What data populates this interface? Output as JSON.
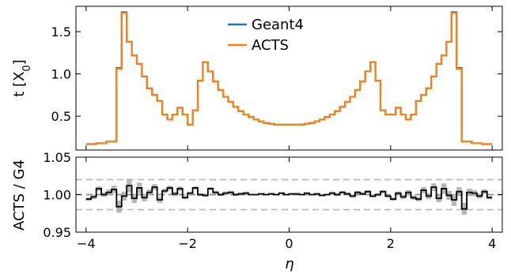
{
  "chart_data": [
    {
      "type": "line",
      "step": true,
      "ylabel_main": "t [X",
      "ylabel_sub": "0",
      "ylabel_close": "]",
      "xlim": [
        -4.2,
        4.2
      ],
      "ylim": [
        0.1,
        1.8
      ],
      "yticks": [
        "0.5",
        "1.0",
        "1.5"
      ],
      "ytick_values": [
        0.5,
        1.0,
        1.5
      ],
      "grid": false,
      "legend_position": "top-center",
      "x_edges": [
        -4.0,
        -3.8,
        -3.6,
        -3.4,
        -3.3,
        -3.2,
        -3.1,
        -3.0,
        -2.9,
        -2.8,
        -2.7,
        -2.6,
        -2.5,
        -2.4,
        -2.3,
        -2.2,
        -2.1,
        -2.0,
        -1.9,
        -1.8,
        -1.7,
        -1.6,
        -1.5,
        -1.4,
        -1.3,
        -1.2,
        -1.1,
        -1.0,
        -0.9,
        -0.8,
        -0.7,
        -0.6,
        -0.5,
        -0.4,
        -0.3,
        -0.2,
        -0.1,
        0.0,
        0.1,
        0.2,
        0.3,
        0.4,
        0.5,
        0.6,
        0.7,
        0.8,
        0.9,
        1.0,
        1.1,
        1.2,
        1.3,
        1.4,
        1.5,
        1.6,
        1.7,
        1.8,
        1.9,
        2.0,
        2.1,
        2.2,
        2.3,
        2.4,
        2.5,
        2.6,
        2.7,
        2.8,
        2.9,
        3.0,
        3.1,
        3.2,
        3.3,
        3.4,
        3.6,
        3.8,
        4.0
      ],
      "series": [
        {
          "name": "Geant4",
          "color": "#1f77b4",
          "values": [
            0.17,
            0.18,
            0.2,
            1.07,
            1.73,
            1.38,
            1.22,
            1.12,
            0.97,
            0.83,
            0.75,
            0.68,
            0.52,
            0.46,
            0.52,
            0.6,
            0.52,
            0.4,
            0.57,
            0.92,
            1.14,
            1.03,
            0.91,
            0.81,
            0.73,
            0.67,
            0.61,
            0.56,
            0.52,
            0.49,
            0.46,
            0.44,
            0.42,
            0.41,
            0.4,
            0.4,
            0.4,
            0.4,
            0.4,
            0.4,
            0.41,
            0.42,
            0.44,
            0.46,
            0.49,
            0.52,
            0.56,
            0.61,
            0.67,
            0.73,
            0.81,
            0.91,
            1.03,
            1.14,
            0.92,
            0.57,
            0.52,
            0.52,
            0.6,
            0.52,
            0.46,
            0.52,
            0.68,
            0.75,
            0.83,
            0.97,
            1.12,
            1.22,
            1.38,
            1.73,
            1.07,
            0.2,
            0.18,
            0.17
          ]
        },
        {
          "name": "ACTS",
          "color": "#ff7f0e",
          "values": [
            0.17,
            0.18,
            0.2,
            1.06,
            1.72,
            1.38,
            1.22,
            1.12,
            0.97,
            0.83,
            0.75,
            0.68,
            0.52,
            0.46,
            0.52,
            0.6,
            0.52,
            0.4,
            0.57,
            0.92,
            1.14,
            1.03,
            0.91,
            0.81,
            0.73,
            0.67,
            0.61,
            0.56,
            0.52,
            0.49,
            0.46,
            0.44,
            0.42,
            0.41,
            0.4,
            0.4,
            0.4,
            0.4,
            0.4,
            0.4,
            0.41,
            0.42,
            0.44,
            0.46,
            0.49,
            0.52,
            0.56,
            0.61,
            0.67,
            0.73,
            0.81,
            0.91,
            1.03,
            1.14,
            0.92,
            0.57,
            0.52,
            0.52,
            0.6,
            0.52,
            0.46,
            0.52,
            0.68,
            0.75,
            0.83,
            0.97,
            1.12,
            1.22,
            1.38,
            1.72,
            1.06,
            0.2,
            0.18,
            0.17
          ]
        }
      ]
    },
    {
      "type": "line",
      "step": true,
      "ylabel": "ACTS / G4",
      "xlabel": "η",
      "xlim": [
        -4.2,
        4.2
      ],
      "ylim": [
        0.95,
        1.05
      ],
      "yticks": [
        "0.95",
        "1.00",
        "1.05"
      ],
      "ytick_values": [
        0.95,
        1.0,
        1.05
      ],
      "xticks": [
        "−4",
        "−2",
        "0",
        "2",
        "4"
      ],
      "xtick_values": [
        -4,
        -2,
        0,
        2,
        4
      ],
      "reference_lines": [
        0.98,
        1.0,
        1.02
      ],
      "line_color": "#000000",
      "band_color": "#aaaaaa",
      "x_edges": [
        -4.0,
        -3.9,
        -3.8,
        -3.7,
        -3.6,
        -3.5,
        -3.4,
        -3.3,
        -3.2,
        -3.1,
        -3.0,
        -2.9,
        -2.8,
        -2.7,
        -2.6,
        -2.5,
        -2.4,
        -2.3,
        -2.2,
        -2.1,
        -2.0,
        -1.9,
        -1.8,
        -1.7,
        -1.6,
        -1.5,
        -1.4,
        -1.3,
        -1.2,
        -1.1,
        -1.0,
        -0.9,
        -0.8,
        -0.7,
        -0.6,
        -0.5,
        -0.4,
        -0.3,
        -0.2,
        -0.1,
        0.0,
        0.1,
        0.2,
        0.3,
        0.4,
        0.5,
        0.6,
        0.7,
        0.8,
        0.9,
        1.0,
        1.1,
        1.2,
        1.3,
        1.4,
        1.5,
        1.6,
        1.7,
        1.8,
        1.9,
        2.0,
        2.1,
        2.2,
        2.3,
        2.4,
        2.5,
        2.6,
        2.7,
        2.8,
        2.9,
        3.0,
        3.1,
        3.2,
        3.3,
        3.4,
        3.5,
        3.6,
        3.7,
        3.8,
        3.9,
        4.0
      ],
      "ratio": [
        0.994,
        0.997,
        1.008,
        1.0,
        1.003,
        1.007,
        0.984,
        0.998,
        1.012,
        0.995,
        1.009,
        0.996,
        1.003,
        1.01,
        0.993,
        1.005,
        1.009,
        1.001,
        1.008,
        0.996,
        1.002,
        1.009,
        1.0,
        0.999,
        1.008,
        1.003,
        1.0,
        1.002,
        1.003,
        1.0,
        1.001,
        1.002,
        1.0,
        1.0,
        1.001,
        1.0,
        1.001,
        1.0,
        1.002,
        1.0,
        1.001,
        1.001,
        1.0,
        1.002,
        1.0,
        1.001,
        0.999,
        1.0,
        1.002,
        1.0,
        1.003,
        1.001,
        0.998,
        1.003,
        1.001,
        1.004,
        0.998,
        1.0,
        1.004,
        0.998,
        0.994,
        1.002,
        0.997,
        1.003,
        0.996,
        0.994,
        1.006,
        0.998,
        1.01,
        0.995,
        1.008,
        0.999,
        0.993,
        1.004,
        0.981,
        1.003,
        1.002,
        0.998,
        1.004,
        0.996
      ],
      "uncertainty": [
        0.002,
        0.003,
        0.003,
        0.003,
        0.004,
        0.005,
        0.008,
        0.006,
        0.009,
        0.006,
        0.007,
        0.005,
        0.004,
        0.004,
        0.004,
        0.003,
        0.003,
        0.003,
        0.003,
        0.002,
        0.002,
        0.002,
        0.002,
        0.002,
        0.002,
        0.002,
        0.002,
        0.002,
        0.002,
        0.002,
        0.002,
        0.002,
        0.001,
        0.001,
        0.001,
        0.001,
        0.001,
        0.001,
        0.001,
        0.001,
        0.001,
        0.001,
        0.001,
        0.001,
        0.001,
        0.001,
        0.001,
        0.001,
        0.002,
        0.002,
        0.002,
        0.002,
        0.002,
        0.002,
        0.002,
        0.002,
        0.002,
        0.002,
        0.002,
        0.002,
        0.002,
        0.002,
        0.003,
        0.003,
        0.003,
        0.003,
        0.004,
        0.004,
        0.005,
        0.005,
        0.007,
        0.006,
        0.008,
        0.006,
        0.008,
        0.005,
        0.004,
        0.003,
        0.003,
        0.002
      ]
    }
  ]
}
